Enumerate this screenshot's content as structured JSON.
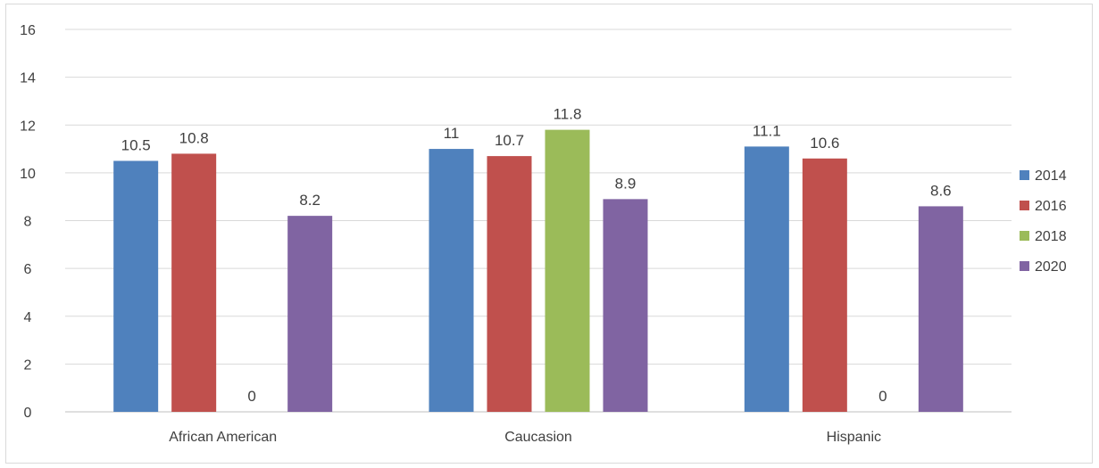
{
  "chart_data": {
    "type": "bar",
    "title": "",
    "xlabel": "",
    "ylabel": "",
    "categories": [
      "African American",
      "Caucasion",
      "Hispanic"
    ],
    "series": [
      {
        "name": "2014",
        "color": "#4F81BD",
        "values": [
          10.5,
          11,
          11.1
        ]
      },
      {
        "name": "2016",
        "color": "#C0504D",
        "values": [
          10.8,
          10.7,
          10.6
        ]
      },
      {
        "name": "2018",
        "color": "#9BBB59",
        "values": [
          0,
          11.8,
          0
        ]
      },
      {
        "name": "2020",
        "color": "#8064A2",
        "values": [
          8.2,
          8.9,
          8.6
        ]
      }
    ],
    "ylim": [
      0,
      16
    ],
    "yticks": [
      "0",
      "2",
      "4",
      "6",
      "8",
      "10",
      "12",
      "14",
      "16"
    ],
    "grid": true,
    "legend": "right",
    "data_labels": true,
    "colors": {
      "gridline": "#d9d9d9",
      "axis": "#bfbfbf",
      "text": "#404040",
      "border": "#d9d9d9"
    }
  }
}
